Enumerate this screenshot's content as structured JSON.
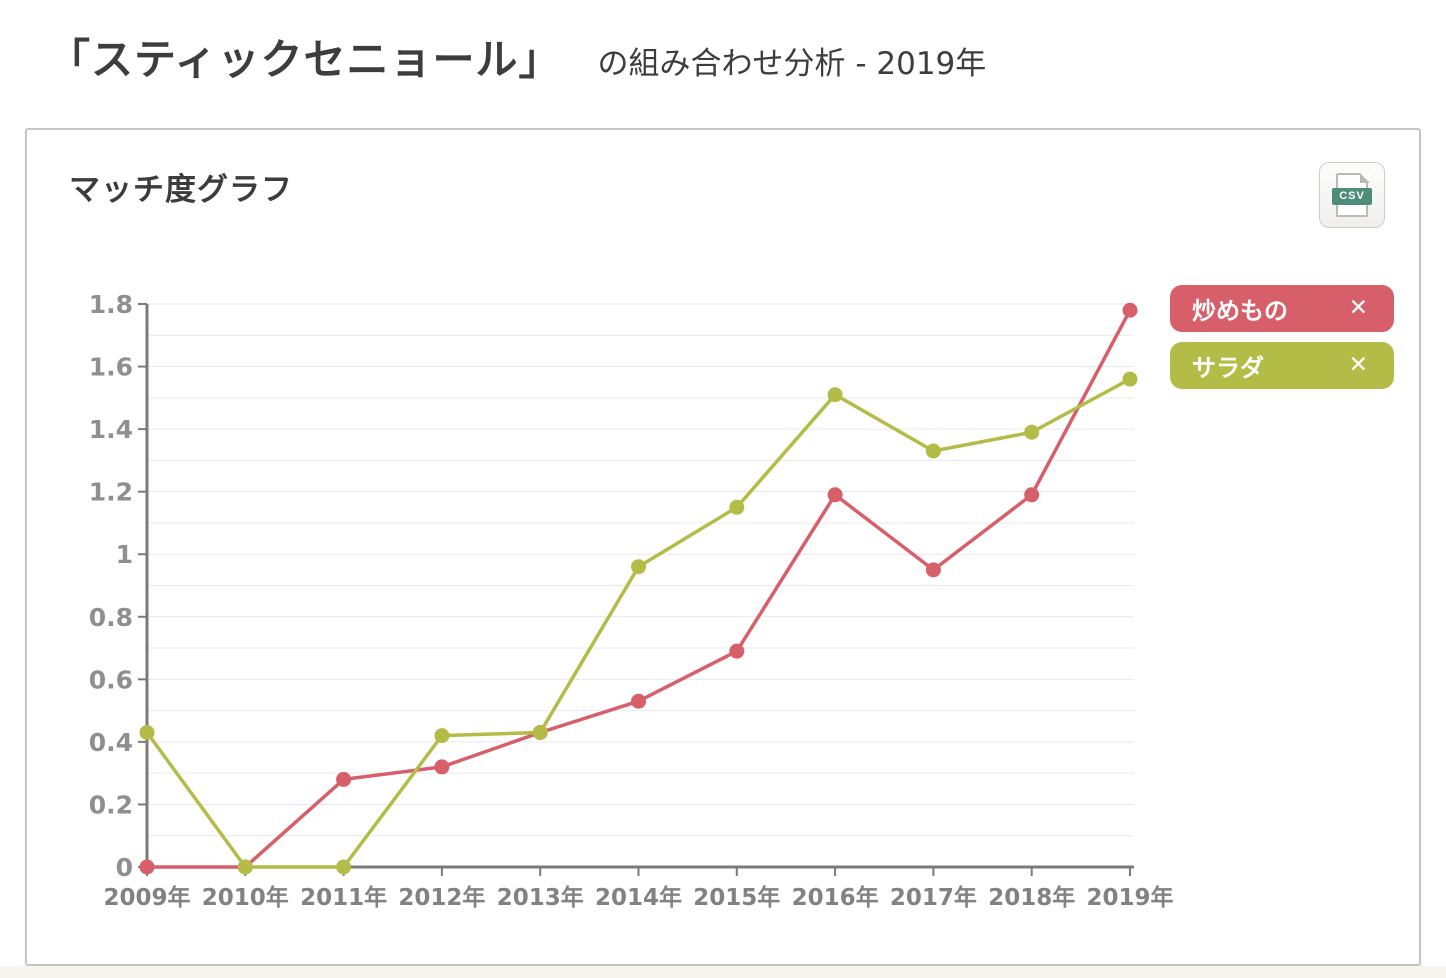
{
  "page": {
    "title_main": "「スティックセニョール」",
    "title_sub": "の組み合わせ分析 - 2019年"
  },
  "panel": {
    "title": "マッチ度グラフ",
    "csv_label": "CSV"
  },
  "legend": [
    {
      "label": "炒めもの",
      "close_label": "✕",
      "color": "#d75f6a"
    },
    {
      "label": "サラダ",
      "close_label": "✕",
      "color": "#b4bc48"
    }
  ],
  "colors": {
    "series_red": "#d75f6a",
    "series_green": "#b4bc48",
    "csv_badge": "#4e8d78",
    "axis": "#7a7a7a",
    "grid": "#e9e9e9"
  },
  "chart_data": {
    "type": "line",
    "title": "マッチ度グラフ",
    "xlabel": "",
    "ylabel": "",
    "categories": [
      "2009年",
      "2010年",
      "2011年",
      "2012年",
      "2013年",
      "2014年",
      "2015年",
      "2016年",
      "2017年",
      "2018年",
      "2019年"
    ],
    "series": [
      {
        "name": "炒めもの",
        "color": "#d75f6a",
        "values": [
          0,
          0,
          0.28,
          0.32,
          0.43,
          0.53,
          0.69,
          1.19,
          0.95,
          1.19,
          1.78
        ]
      },
      {
        "name": "サラダ",
        "color": "#b4bc48",
        "values": [
          0.43,
          0,
          0,
          0.42,
          0.43,
          0.96,
          1.15,
          1.51,
          1.33,
          1.39,
          1.56
        ]
      }
    ],
    "ylim": [
      0,
      1.8
    ],
    "yticks": [
      "0",
      "0.2",
      "0.4",
      "0.6",
      "0.8",
      "1",
      "1.2",
      "1.4",
      "1.6",
      "1.8"
    ],
    "ytick_step": 0.2,
    "grid_step": 0.1,
    "grid": true,
    "legend_position": "right-top"
  }
}
